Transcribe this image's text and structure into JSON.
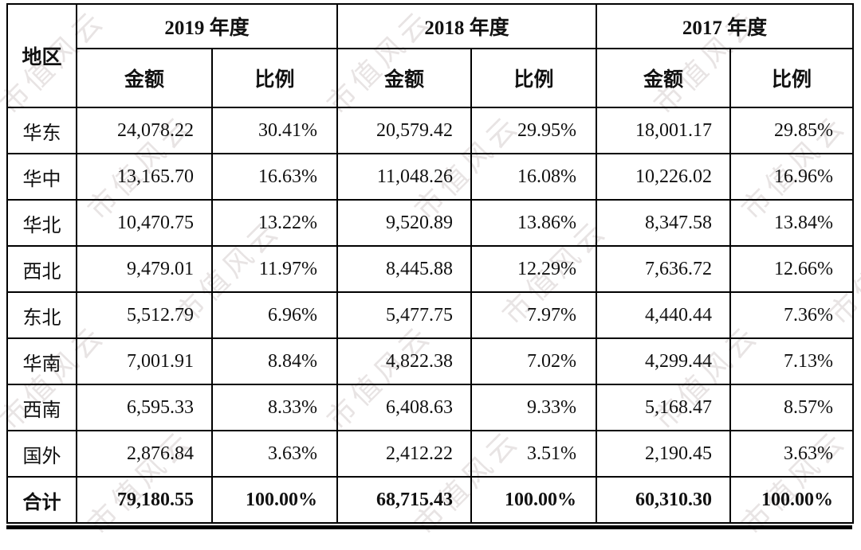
{
  "watermark": {
    "text": "市值风云",
    "color": "#e8e4e4"
  },
  "table": {
    "region_header": "地区",
    "year_headers": [
      "2019 年度",
      "2018 年度",
      "2017 年度"
    ],
    "sub_headers": {
      "amount": "金额",
      "ratio": "比例"
    },
    "rows": [
      {
        "region": "华东",
        "values": [
          "24,078.22",
          "30.41%",
          "20,579.42",
          "29.95%",
          "18,001.17",
          "29.85%"
        ]
      },
      {
        "region": "华中",
        "values": [
          "13,165.70",
          "16.63%",
          "11,048.26",
          "16.08%",
          "10,226.02",
          "16.96%"
        ]
      },
      {
        "region": "华北",
        "values": [
          "10,470.75",
          "13.22%",
          "9,520.89",
          "13.86%",
          "8,347.58",
          "13.84%"
        ]
      },
      {
        "region": "西北",
        "values": [
          "9,479.01",
          "11.97%",
          "8,445.88",
          "12.29%",
          "7,636.72",
          "12.66%"
        ]
      },
      {
        "region": "东北",
        "values": [
          "5,512.79",
          "6.96%",
          "5,477.75",
          "7.97%",
          "4,440.44",
          "7.36%"
        ]
      },
      {
        "region": "华南",
        "values": [
          "7,001.91",
          "8.84%",
          "4,822.38",
          "7.02%",
          "4,299.44",
          "7.13%"
        ]
      },
      {
        "region": "西南",
        "values": [
          "6,595.33",
          "8.33%",
          "6,408.63",
          "9.33%",
          "5,168.47",
          "8.57%"
        ]
      },
      {
        "region": "国外",
        "values": [
          "2,876.84",
          "3.63%",
          "2,412.22",
          "3.51%",
          "2,190.45",
          "3.63%"
        ]
      }
    ],
    "total_row": {
      "region": "合计",
      "values": [
        "79,180.55",
        "100.00%",
        "68,715.43",
        "100.00%",
        "60,310.30",
        "100.00%"
      ]
    }
  }
}
